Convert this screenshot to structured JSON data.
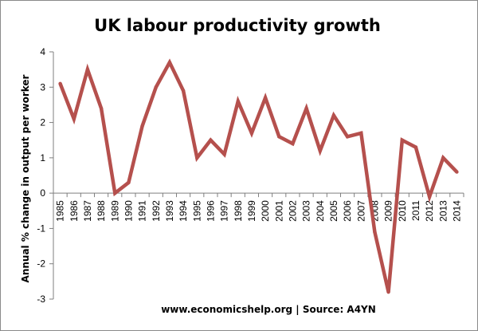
{
  "chart_data": {
    "type": "line",
    "title": "UK labour productivity growth",
    "xlabel": "",
    "ylabel": "Annual % change in output per worker",
    "source": "www.economicshelp.org | Source: A4YN",
    "ylim": [
      -3,
      4
    ],
    "yticks": [
      -3,
      -2,
      -1,
      0,
      1,
      2,
      3,
      4
    ],
    "grid": false,
    "legend": "none",
    "line_color": "#b5504d",
    "categories": [
      "1985",
      "1986",
      "1987",
      "1988",
      "1989",
      "1990",
      "1991",
      "1992",
      "1993",
      "1994",
      "1995",
      "1996",
      "1997",
      "1998",
      "1999",
      "2000",
      "2001",
      "2002",
      "2003",
      "2004",
      "2005",
      "2006",
      "2007",
      "2008",
      "2009",
      "2010",
      "2011",
      "2012",
      "2013",
      "2014"
    ],
    "series": [
      {
        "name": "UK labour productivity growth",
        "values": [
          3.1,
          2.1,
          3.5,
          2.4,
          0.0,
          0.3,
          1.9,
          3.0,
          3.7,
          2.9,
          1.0,
          1.5,
          1.1,
          2.6,
          1.7,
          2.7,
          1.6,
          1.4,
          2.4,
          1.2,
          2.2,
          1.6,
          1.7,
          -1.1,
          -2.8,
          1.5,
          1.3,
          -0.1,
          1.0,
          0.6
        ]
      }
    ]
  }
}
